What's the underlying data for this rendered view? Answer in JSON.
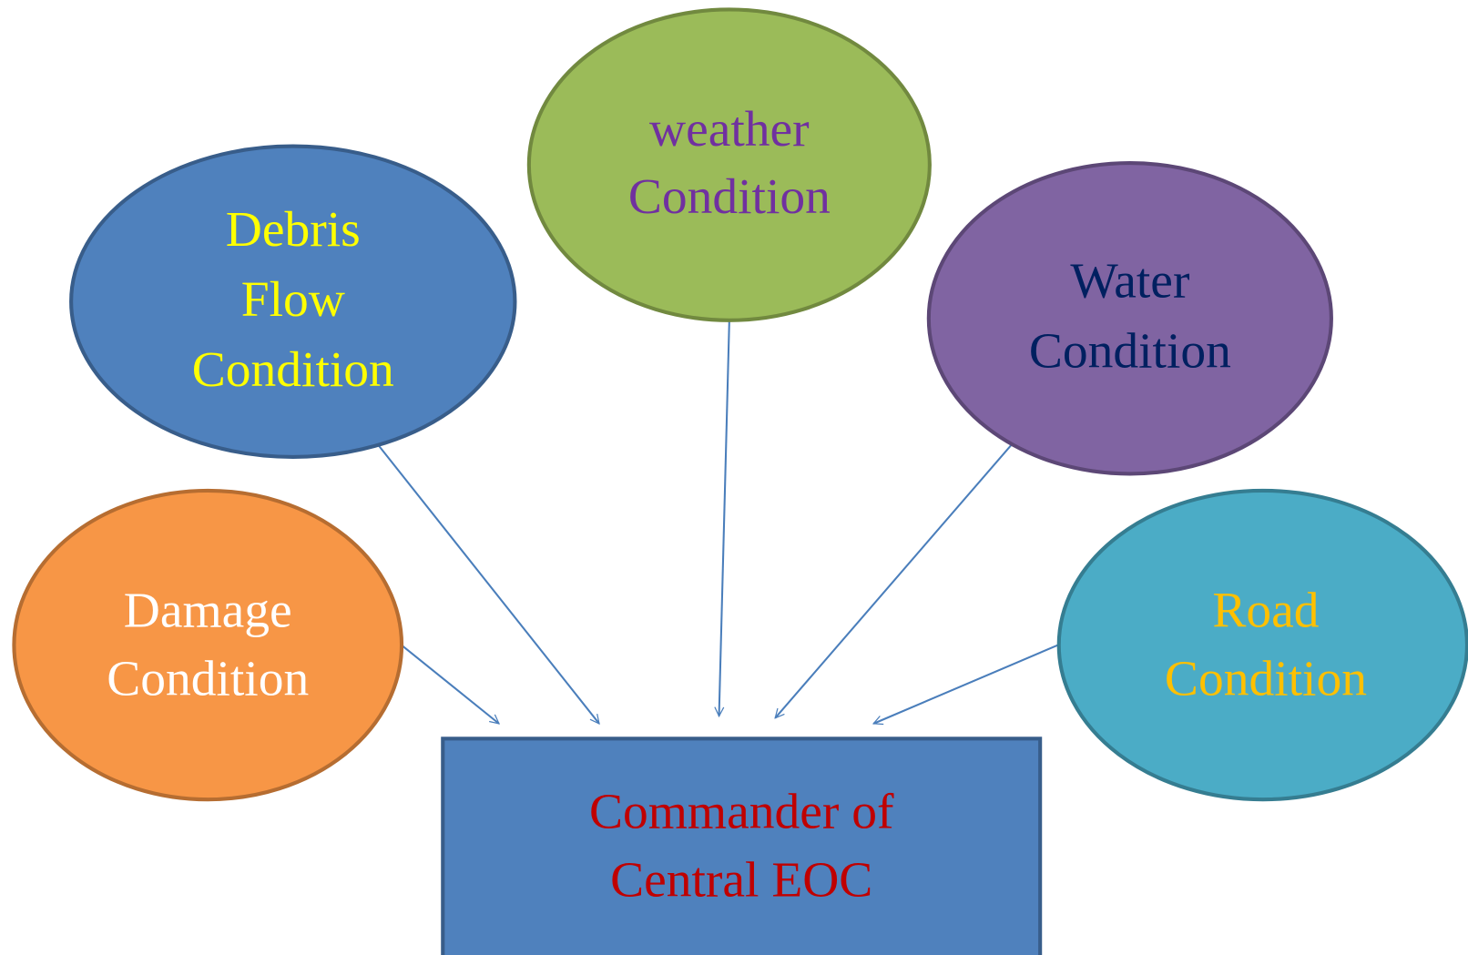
{
  "nodes": [
    {
      "lines": [
        "weather",
        "Condition"
      ]
    },
    {
      "lines": [
        "Debris",
        "Flow",
        "Condition"
      ]
    },
    {
      "lines": [
        "Water",
        "Condition"
      ]
    },
    {
      "lines": [
        "Damage",
        "Condition"
      ]
    },
    {
      "lines": [
        "Road",
        "Condition"
      ]
    }
  ],
  "target": {
    "lines": [
      "Commander of",
      "Central EOC"
    ]
  }
}
